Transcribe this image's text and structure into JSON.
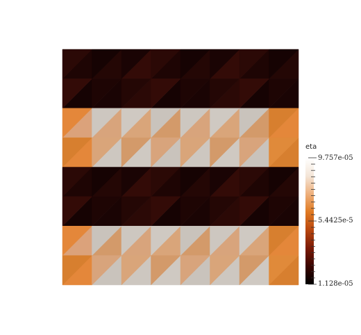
{
  "colorbar": {
    "title": "eta",
    "max_label": "9.757e-05",
    "mid_label": "5.4425e-5",
    "min_label": "1.128e-05",
    "colormap": [
      "#000000",
      "#3a0500",
      "#7a1a06",
      "#b8460f",
      "#e07a22",
      "#eeb07c",
      "#f4e6d8",
      "#ffffff"
    ]
  },
  "field": {
    "columns": 8,
    "rows": 8,
    "cell_colors": [
      [
        "#1c0504",
        "#2a0806"
      ],
      [
        "#d77f33",
        "#d4a47a",
        "#d2ae92",
        "#ccc6bf"
      ],
      [
        "#120303",
        "#220705"
      ],
      [
        "#d7883c",
        "#d29a6d",
        "#cfaf92",
        "#cbc8c2"
      ]
    ]
  }
}
